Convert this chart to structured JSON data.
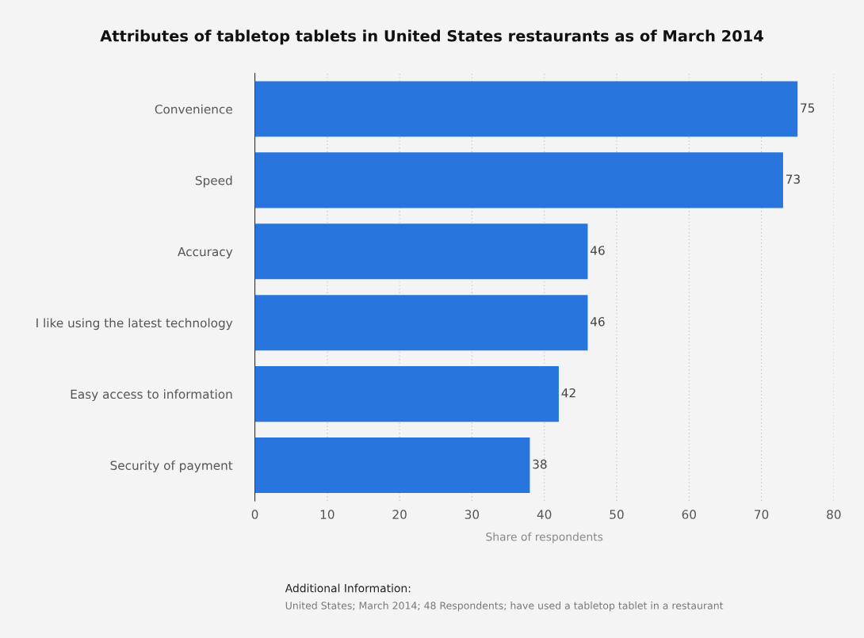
{
  "chart_data": {
    "type": "bar",
    "orientation": "horizontal",
    "title": "Attributes of tabletop tablets in United States restaurants as of March 2014",
    "xlabel": "Share of respondents",
    "categories": [
      "Convenience",
      "Speed",
      "Accuracy",
      "I like using the latest technology",
      "Easy access to information",
      "Security of payment"
    ],
    "values": [
      75,
      73,
      46,
      46,
      42,
      38
    ],
    "color": "#2876dd",
    "data_labels": true,
    "xlim": [
      0,
      80
    ],
    "xticks": [
      0,
      10,
      20,
      30,
      40,
      50,
      60,
      70,
      80
    ],
    "grid": "x",
    "annotations": [
      "Additional Information:",
      "United States; March 2014; 48 Respondents; have used a tabletop tablet in a restaurant"
    ]
  }
}
